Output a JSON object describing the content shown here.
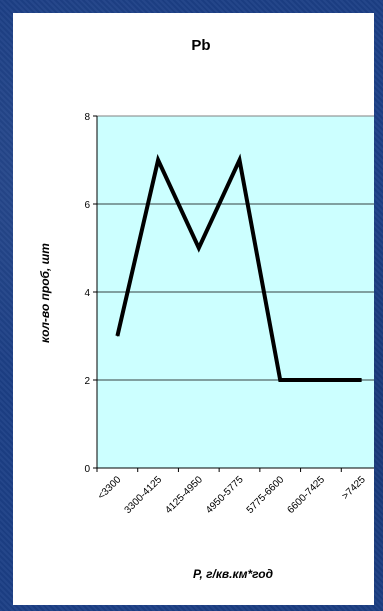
{
  "chart_data": {
    "type": "line",
    "title": "Pb",
    "xlabel": "P, г/кв.км*год",
    "ylabel": "кол-во проб, шт",
    "categories": [
      "<3300",
      "3300-4125",
      "4125-4950",
      "4950-5775",
      "5775-6600",
      "6600-7425",
      ">7425"
    ],
    "series": [
      {
        "values": [
          3,
          7,
          5,
          7,
          2,
          2,
          2
        ],
        "color": "#000000"
      }
    ],
    "ylim": [
      0,
      8
    ],
    "yticks": [
      0,
      2,
      4,
      6,
      8
    ],
    "grid": true,
    "legend": "none",
    "plot_background": "#ccffff",
    "panel_background": "#ffffff",
    "slide_background": "#1c3f86"
  }
}
